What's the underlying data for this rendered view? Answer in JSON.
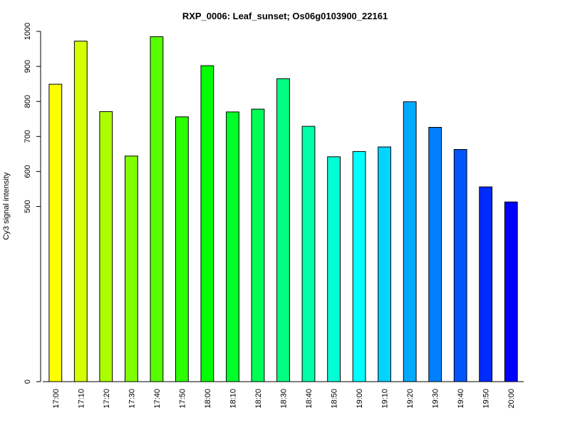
{
  "chart_data": {
    "type": "bar",
    "title": "RXP_0006: Leaf_sunset; Os06g0103900_22161",
    "xlabel": "",
    "ylabel": "Cy3 signal intensity",
    "categories": [
      "17:00",
      "17:10",
      "17:20",
      "17:30",
      "17:40",
      "17:50",
      "18:00",
      "18:10",
      "18:20",
      "18:30",
      "18:40",
      "18:50",
      "19:00",
      "19:10",
      "19:20",
      "19:30",
      "19:40",
      "19:50",
      "20:00"
    ],
    "values": [
      849,
      972,
      771,
      644,
      985,
      756,
      902,
      770,
      778,
      865,
      729,
      642,
      657,
      670,
      799,
      726,
      663,
      556,
      513
    ],
    "colors": [
      "#ffff00",
      "#d4ff00",
      "#aaff00",
      "#80ff00",
      "#55ff00",
      "#2bff00",
      "#00ff00",
      "#00ff2a",
      "#00ff55",
      "#00ff80",
      "#00ffaa",
      "#00ffd4",
      "#00ffff",
      "#00d4ff",
      "#00aaff",
      "#0080ff",
      "#0055ff",
      "#002bff",
      "#0000ff"
    ],
    "yticks": [
      0,
      500,
      600,
      700,
      800,
      900,
      1000
    ],
    "ylim": [
      0,
      1000
    ],
    "grid": false,
    "legend": "none"
  }
}
